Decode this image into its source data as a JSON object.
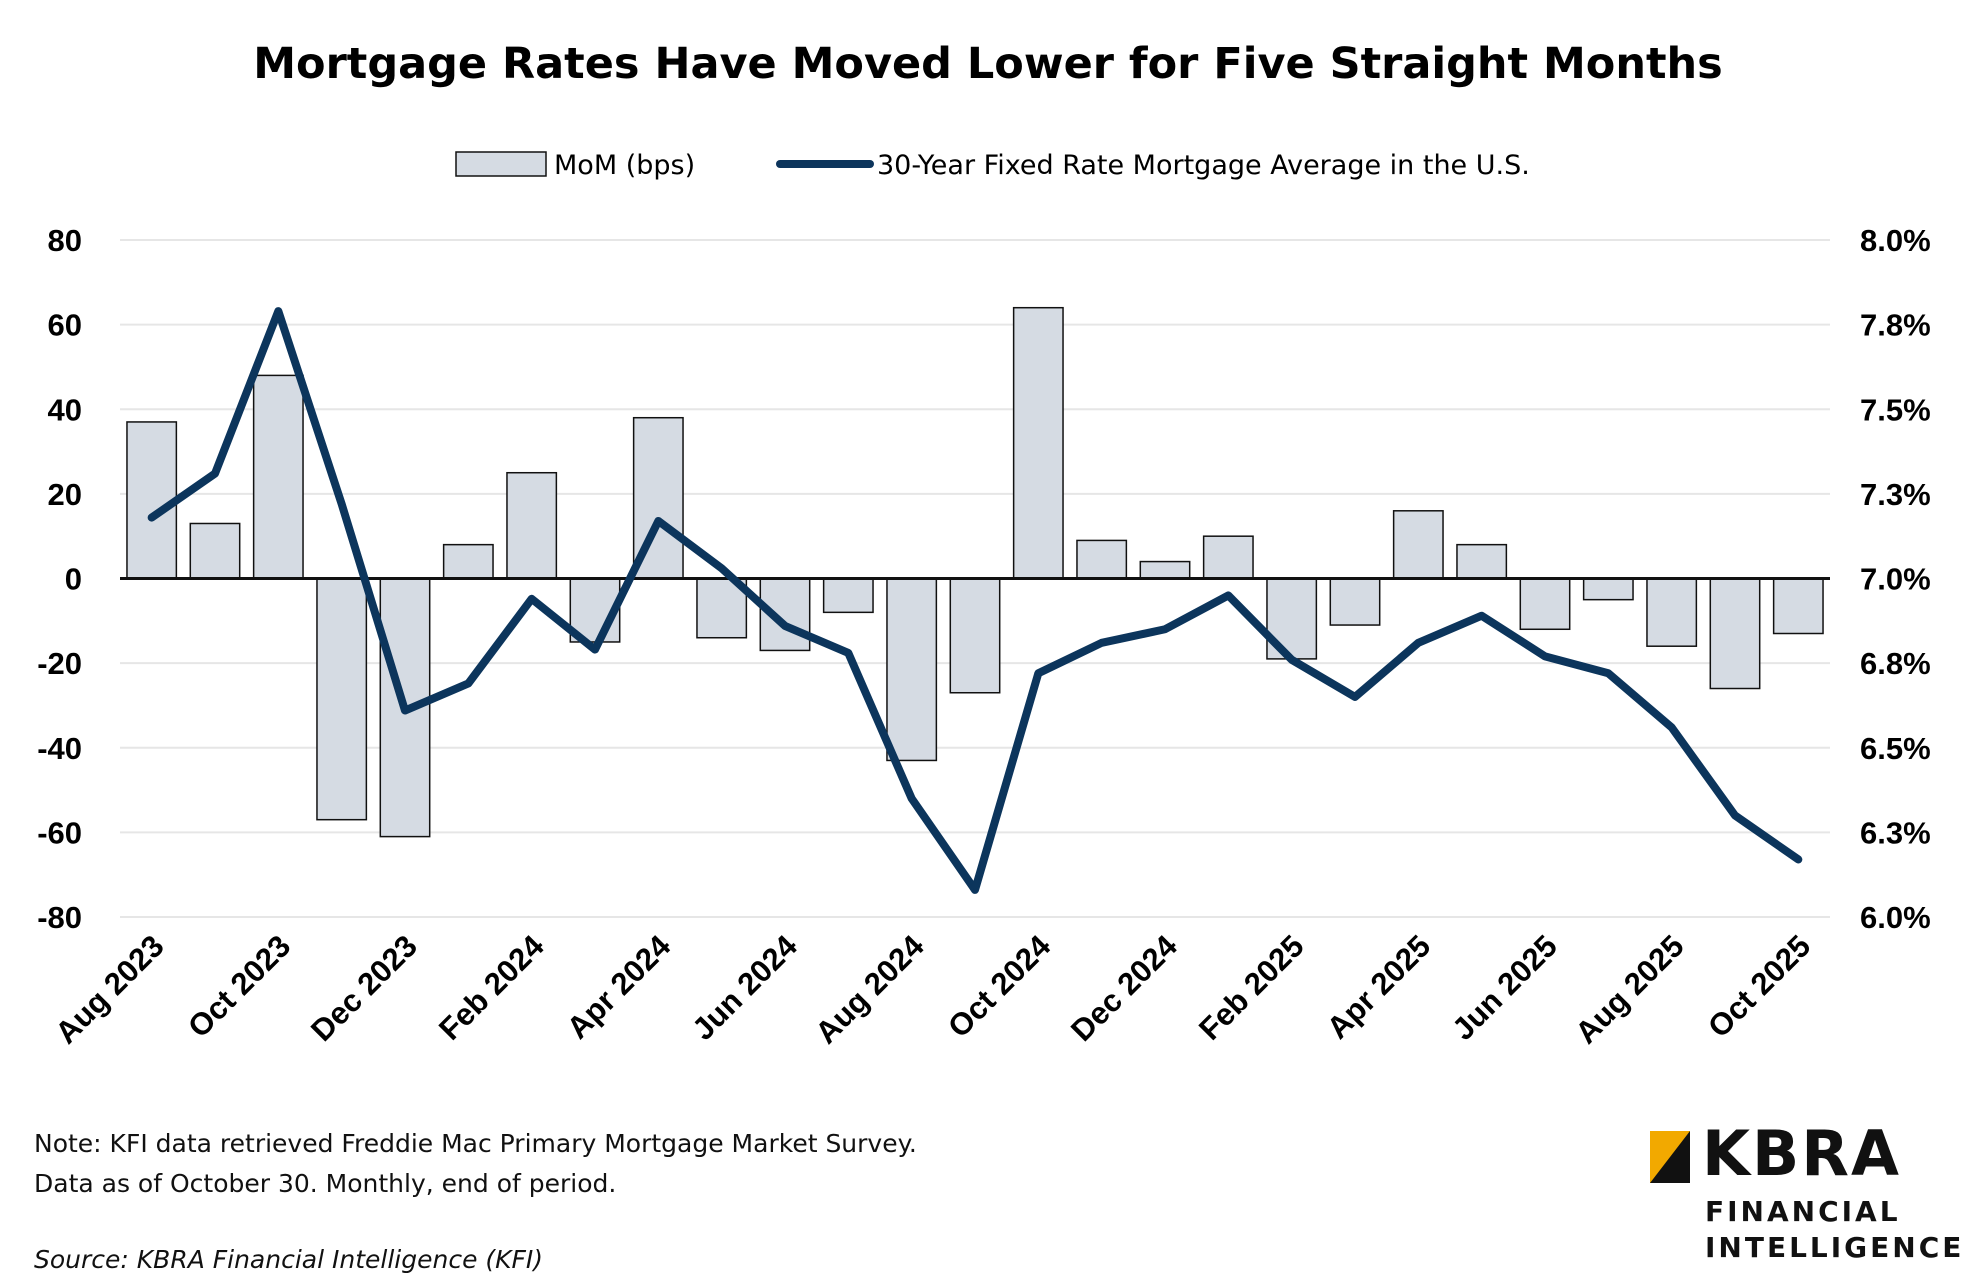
{
  "chart_data": {
    "type": "bar+line",
    "title": "Mortgage Rates Have Moved Lower for Five Straight Months",
    "legend": [
      "MoM (bps)",
      "30-Year Fixed Rate Mortgage Average in the U.S."
    ],
    "categories": [
      "Aug 2023",
      "Sep 2023",
      "Oct 2023",
      "Nov 2023",
      "Dec 2023",
      "Jan 2024",
      "Feb 2024",
      "Mar 2024",
      "Apr 2024",
      "May 2024",
      "Jun 2024",
      "Jul 2024",
      "Aug 2024",
      "Sep 2024",
      "Oct 2024",
      "Nov 2024",
      "Dec 2024",
      "Jan 2025",
      "Feb 2025",
      "Mar 2025",
      "Apr 2025",
      "May 2025",
      "Jun 2025",
      "Jul 2025",
      "Aug 2025",
      "Sep 2025",
      "Oct 2025"
    ],
    "x_tick_labels": [
      "Aug 2023",
      "Oct 2023",
      "Dec 2023",
      "Feb 2024",
      "Apr 2024",
      "Jun 2024",
      "Aug 2024",
      "Oct 2024",
      "Dec 2024",
      "Feb 2025",
      "Apr 2025",
      "Jun 2025",
      "Aug 2025",
      "Oct 2025"
    ],
    "series": [
      {
        "name": "MoM (bps)",
        "type": "bar",
        "axis": "left",
        "color": "#d5dbe3",
        "values": [
          37,
          13,
          48,
          -57,
          -61,
          8,
          25,
          -15,
          38,
          -14,
          -17,
          -8,
          -43,
          -27,
          64,
          9,
          4,
          10,
          -19,
          -11,
          16,
          8,
          -12,
          -5,
          -16,
          -26,
          -13
        ]
      },
      {
        "name": "30-Year Fixed Rate Mortgage Average in the U.S.",
        "type": "line",
        "axis": "right",
        "color": "#0c355c",
        "values": [
          7.18,
          7.31,
          7.79,
          7.22,
          6.61,
          6.69,
          6.94,
          6.79,
          7.17,
          7.03,
          6.86,
          6.78,
          6.35,
          6.08,
          6.72,
          6.81,
          6.85,
          6.95,
          6.76,
          6.65,
          6.81,
          6.89,
          6.77,
          6.72,
          6.56,
          6.3,
          6.17
        ]
      }
    ],
    "y_left": {
      "range": [
        -80,
        80
      ],
      "ticks": [
        "80",
        "60",
        "40",
        "20",
        "0",
        "-20",
        "-40",
        "-60",
        "-80"
      ]
    },
    "y_right": {
      "range": [
        6.0,
        8.0
      ],
      "ticks": [
        "8.0%",
        "7.8%",
        "7.5%",
        "7.3%",
        "7.0%",
        "6.8%",
        "6.5%",
        "6.3%",
        "6.0%"
      ]
    },
    "grid": true,
    "legend_position": "top-center"
  },
  "footer": {
    "note_line1": "Note: KFI data retrieved Freddie Mac Primary Mortgage Market Survey.",
    "note_line2": "Data as of October 30. Monthly, end of period.",
    "source": "Source: KBRA Financial Intelligence (KFI)"
  },
  "logo": {
    "wordmark": "KBRA",
    "line1": "FINANCIAL",
    "line2": "INTELLIGENCE",
    "accent_color": "#f2a900"
  }
}
